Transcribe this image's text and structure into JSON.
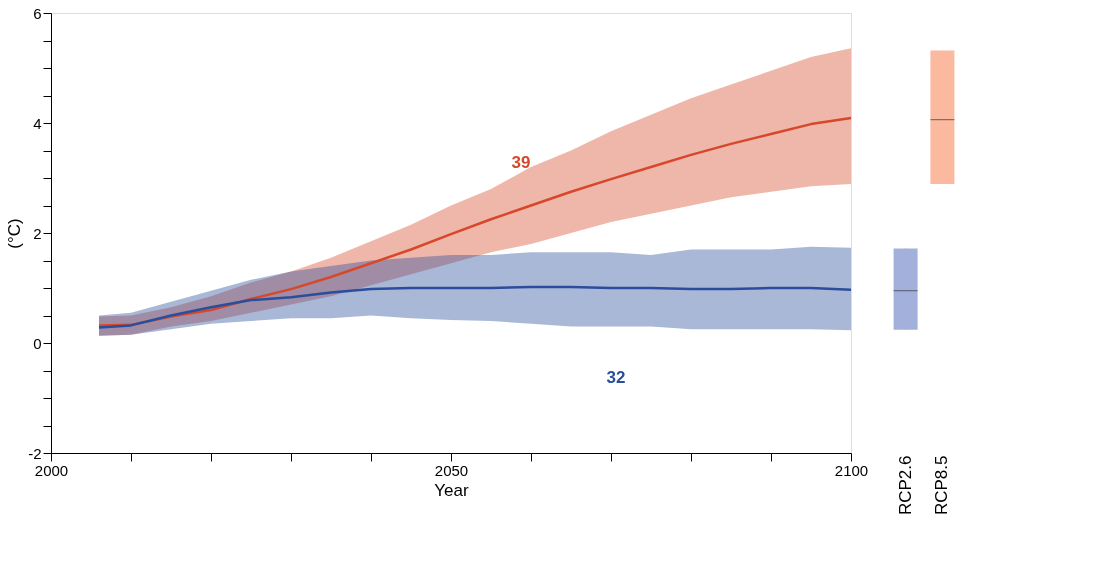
{
  "chart_data": [
    {
      "type": "line",
      "xlabel": "Year",
      "ylabel": "(°C)",
      "xlim": [
        2000,
        2100
      ],
      "xticks": [
        2000,
        {
          "value": 2010,
          "label": null
        },
        {
          "value": 2020,
          "label": null
        },
        {
          "value": 2030,
          "label": null
        },
        {
          "value": 2040,
          "label": null
        },
        2050,
        {
          "value": 2060,
          "label": null
        },
        {
          "value": 2070,
          "label": null
        },
        {
          "value": 2080,
          "label": null
        },
        {
          "value": 2090,
          "label": null
        },
        2100
      ],
      "ylim": [
        -2,
        6
      ],
      "yticks": [
        -2,
        {
          "value": -1.5,
          "label": null
        },
        {
          "value": -1,
          "label": null
        },
        {
          "value": -0.5,
          "label": null
        },
        0,
        {
          "value": 0.5,
          "label": null
        },
        {
          "value": 1,
          "label": null
        },
        {
          "value": 1.5,
          "label": null
        },
        2,
        {
          "value": 2.5,
          "label": null
        },
        {
          "value": 3,
          "label": null
        },
        {
          "value": 3.5,
          "label": null
        },
        4,
        {
          "value": 4.5,
          "label": null
        },
        {
          "value": 5,
          "label": null
        },
        {
          "value": 5.5,
          "label": null
        },
        6
      ],
      "x": [
        2006,
        2010,
        2015,
        2020,
        2025,
        2030,
        2035,
        2040,
        2045,
        2050,
        2055,
        2060,
        2065,
        2070,
        2075,
        2080,
        2085,
        2090,
        2095,
        2100
      ],
      "series": [
        {
          "color": "#d7482a",
          "values": [
            0.32,
            0.33,
            0.48,
            0.6,
            0.8,
            0.98,
            1.2,
            1.45,
            1.7,
            1.98,
            2.25,
            2.5,
            2.75,
            2.98,
            3.2,
            3.42,
            3.62,
            3.8,
            3.98,
            4.09
          ],
          "upper": [
            0.48,
            0.5,
            0.65,
            0.85,
            1.1,
            1.3,
            1.55,
            1.85,
            2.15,
            2.5,
            2.8,
            3.2,
            3.5,
            3.85,
            4.15,
            4.45,
            4.7,
            4.95,
            5.2,
            5.36
          ],
          "lower": [
            0.13,
            0.15,
            0.3,
            0.4,
            0.55,
            0.7,
            0.85,
            1.05,
            1.25,
            1.45,
            1.65,
            1.8,
            2.0,
            2.2,
            2.35,
            2.5,
            2.65,
            2.75,
            2.85,
            2.89
          ]
        },
        {
          "color": "#2a4e9c",
          "values": [
            0.28,
            0.32,
            0.5,
            0.65,
            0.78,
            0.83,
            0.92,
            0.98,
            1.0,
            1.0,
            1.0,
            1.02,
            1.02,
            1.0,
            1.0,
            0.98,
            0.98,
            1.0,
            1.0,
            0.97
          ],
          "upper": [
            0.5,
            0.55,
            0.75,
            0.95,
            1.15,
            1.3,
            1.4,
            1.5,
            1.55,
            1.6,
            1.6,
            1.65,
            1.65,
            1.65,
            1.6,
            1.7,
            1.7,
            1.7,
            1.75,
            1.73
          ],
          "lower": [
            0.13,
            0.15,
            0.25,
            0.35,
            0.4,
            0.45,
            0.45,
            0.5,
            0.45,
            0.42,
            0.4,
            0.35,
            0.3,
            0.3,
            0.3,
            0.25,
            0.25,
            0.25,
            0.25,
            0.23
          ]
        }
      ],
      "annotations": [
        "39",
        "32"
      ]
    },
    {
      "type": "box",
      "categories": [
        "RCP2.6",
        "RCP8.5"
      ],
      "colors": [
        "#a4b0dc",
        "#fbb9a0"
      ],
      "ylim": [
        -2,
        6
      ],
      "tick_labels": "x",
      "boxes": [
        {
          "low": 0.24,
          "q1": 0.24,
          "median": 0.95,
          "q3": 1.72,
          "high": 1.72
        },
        {
          "low": 2.89,
          "q1": 2.89,
          "median": 4.06,
          "q3": 5.32,
          "high": 5.32
        }
      ]
    }
  ]
}
